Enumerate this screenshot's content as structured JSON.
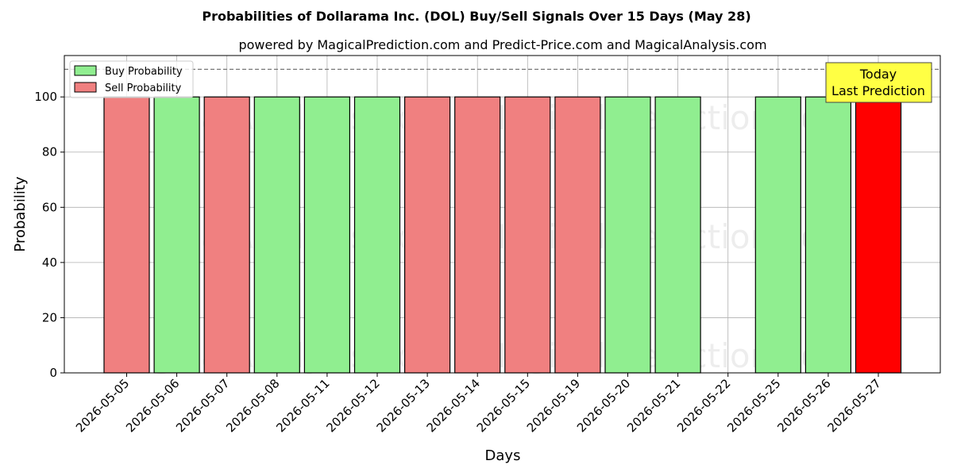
{
  "chart_data": {
    "type": "bar",
    "title": "Probabilities of Dollarama Inc. (DOL) Buy/Sell Signals Over 15 Days (May 28)",
    "subtitle": "powered by MagicalPrediction.com and Predict-Price.com and MagicalAnalysis.com",
    "xlabel": "Days",
    "ylabel": "Probability",
    "ylim": [
      0,
      115
    ],
    "yticks": [
      0,
      20,
      40,
      60,
      80,
      100
    ],
    "grid": true,
    "legend_placement": "top-left",
    "dashed_reference_line": 110,
    "categories": [
      "2026-05-05",
      "2026-05-06",
      "2026-05-07",
      "2026-05-08",
      "2026-05-11",
      "2026-05-12",
      "2026-05-13",
      "2026-05-14",
      "2026-05-15",
      "2026-05-19",
      "2026-05-20",
      "2026-05-21",
      "2026-05-22",
      "2026-05-25",
      "2026-05-26",
      "2026-05-27"
    ],
    "bars": [
      {
        "date": "2026-05-05",
        "signal": "sell",
        "value": 100
      },
      {
        "date": "2026-05-06",
        "signal": "buy",
        "value": 100
      },
      {
        "date": "2026-05-07",
        "signal": "sell",
        "value": 100
      },
      {
        "date": "2026-05-08",
        "signal": "buy",
        "value": 100
      },
      {
        "date": "2026-05-11",
        "signal": "buy",
        "value": 100
      },
      {
        "date": "2026-05-12",
        "signal": "buy",
        "value": 100
      },
      {
        "date": "2026-05-13",
        "signal": "sell",
        "value": 100
      },
      {
        "date": "2026-05-14",
        "signal": "sell",
        "value": 100
      },
      {
        "date": "2026-05-15",
        "signal": "sell",
        "value": 100
      },
      {
        "date": "2026-05-19",
        "signal": "sell",
        "value": 100
      },
      {
        "date": "2026-05-20",
        "signal": "buy",
        "value": 100
      },
      {
        "date": "2026-05-21",
        "signal": "buy",
        "value": 100
      },
      {
        "date": "2026-05-22",
        "signal": "none",
        "value": 0
      },
      {
        "date": "2026-05-25",
        "signal": "buy",
        "value": 100
      },
      {
        "date": "2026-05-26",
        "signal": "buy",
        "value": 100
      },
      {
        "date": "2026-05-27",
        "signal": "today",
        "value": 100
      }
    ],
    "series": [
      {
        "name": "Buy Probability",
        "color": "#90ee90"
      },
      {
        "name": "Sell Probability",
        "color": "#f08080"
      }
    ],
    "today_color": "#ff0000",
    "annotation": {
      "line1": "Today",
      "line2": "Last Prediction",
      "bg_color": "#ffff44"
    },
    "watermarks": [
      "MagicalAnalysis.com",
      "MagicalPrediction.com"
    ]
  }
}
